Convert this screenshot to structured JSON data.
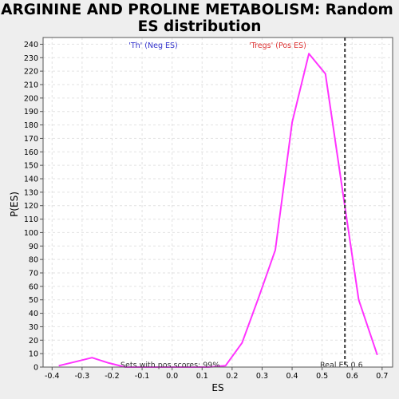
{
  "chart_data": {
    "type": "line",
    "title_line1": "ARGININE AND PROLINE METABOLISM: Random",
    "title_line2": "ES distribution",
    "xlabel": "ES",
    "ylabel": "P(ES)",
    "xlim": [
      -0.43,
      0.735
    ],
    "ylim": [
      0,
      245
    ],
    "x_ticks": [
      -0.4,
      -0.3,
      -0.2,
      -0.1,
      0.0,
      0.1,
      0.2,
      0.3,
      0.4,
      0.5,
      0.6,
      0.7
    ],
    "x_tick_labels": [
      "-0.4",
      "-0.3",
      "-0.2",
      "-0.1",
      "0.0",
      "0.1",
      "0.2",
      "0.3",
      "0.4",
      "0.5",
      "0.6",
      "0.7"
    ],
    "y_ticks": [
      0,
      10,
      20,
      30,
      40,
      50,
      60,
      70,
      80,
      90,
      100,
      110,
      120,
      130,
      140,
      150,
      160,
      170,
      180,
      190,
      200,
      210,
      220,
      230,
      240
    ],
    "y_tick_labels": [
      "0",
      "10",
      "20",
      "30",
      "40",
      "50",
      "60",
      "70",
      "80",
      "90",
      "100",
      "110",
      "120",
      "130",
      "140",
      "150",
      "160",
      "170",
      "180",
      "190",
      "200",
      "210",
      "220",
      "230",
      "240"
    ],
    "grid": true,
    "series": [
      {
        "color": "#ff33ff",
        "x": [
          -0.378,
          -0.322,
          -0.267,
          -0.211,
          -0.156,
          -0.1,
          -0.044,
          0.011,
          0.067,
          0.122,
          0.178,
          0.233,
          0.289,
          0.344,
          0.4,
          0.456,
          0.511,
          0.567,
          0.622,
          0.684
        ],
        "y": [
          1,
          4,
          7,
          3,
          0,
          0,
          0,
          0,
          0,
          0,
          1,
          18,
          52,
          87,
          182,
          233,
          218,
          133,
          50,
          9
        ]
      }
    ],
    "real_es": 0.576,
    "real_es_color": "#333333",
    "annotations": {
      "neg_label": "'Th' (Neg ES)",
      "neg_color": "#3333cc",
      "pos_label": "'Tregs' (Pos ES)",
      "pos_color": "#dd3333",
      "sets_text": "Sets with pos scores: 99%",
      "real_es_label": "Real ES 0.6"
    }
  }
}
